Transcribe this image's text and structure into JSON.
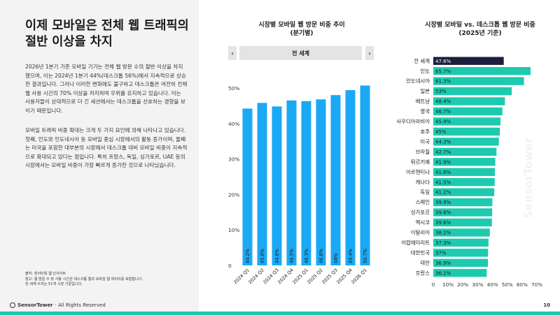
{
  "slide": {
    "title_line1": "이제 모바일은 전체 웹 트래픽의",
    "title_line2": "절반 이상을 차지",
    "para1": "2026년 1분기 기준 모바일 기기는 전체 웹 방문 수의 절반 이상을 차지했으며, 이는 2024년 1분기 44%(데스크톱 56%)에서 지속적으로 상승한 결과입니다. 그러나 이러한 변화에도 불구하고 데스크톱은 여전히 전체 웹 사용 시간의 70% 이상을 차지하며 우위를 유지하고 있습니다. 이는 사용자들이 상대적으로 더 긴 세션에서는 데스크톱을 선호하는 경향을 보이기 때문입니다.",
    "para2": "모바일 트래픽 비중 확대는 크게 두 가지 요인에 의해 나타나고 있습니다. 첫째, 인도와 인도네시아 등 모바일 중심 시장에서의 활동 증가이며, 둘째는 미국을 포함한 대부분의 시장에서 데스크톱 대비 모바일 비중이 지속적으로 확대되고 있다는 점입니다. 특히 프랑스, 독일, 싱가포르, UAE 등의 시장에서는 모바일 비중이 가장 빠르게 증가한 것으로 나타났습니다.",
    "note1": "출처: 센서타워 웹 인사이트",
    "note2": "참고: 웹 방문 수 및 사용 시간은 데스크톱 웹과 모바일 웹 데이터를 포함합니다.",
    "note3": "전 세계 수치는 51개 시장 기준입니다.",
    "footer_brand": "SensorTower",
    "footer_rights": "· All Rights Reserved",
    "page_number": "10",
    "watermark": "SensorTower"
  },
  "selector": {
    "prev_icon": "‹",
    "label": "전 세계",
    "next_icon": "›"
  },
  "colors": {
    "bar_blue": "#1aa9f5",
    "bar_teal": "#1dcaaf",
    "bar_highlight": "#1c1f3d",
    "accent": "#1ec8b0"
  },
  "chart_data": [
    {
      "type": "bar",
      "title": "시장별 모바일 웹 방문 비중 추이",
      "subtitle": "(분기별)",
      "categories": [
        "2024 Q1",
        "2024 Q2",
        "2024 Q3",
        "2024 Q4",
        "2025 Q1",
        "2025 Q2",
        "2025 Q3",
        "2025 Q4",
        "2026 Q1"
      ],
      "values": [
        44.2,
        45.8,
        44.8,
        46.5,
        46.3,
        46.8,
        48.0,
        49.4,
        50.7
      ],
      "data_labels": [
        "44.2%",
        "45.8%",
        "44.8%",
        "46.5%",
        "46.3%",
        "46.8%",
        "48%",
        "49.4%",
        "50.7%"
      ],
      "y_ticks": [
        "0",
        "10%",
        "20%",
        "30%",
        "40%",
        "50%"
      ],
      "ylim": [
        0,
        50
      ],
      "grid": false,
      "color": "#1aa9f5"
    },
    {
      "type": "bar",
      "orientation": "horizontal",
      "title": "시장별 모바일 vs. 데스크톱 웹 방문 비중",
      "subtitle": "(2025년 기준)",
      "categories": [
        "전 세계",
        "인도",
        "인도네시아",
        "일본",
        "베트남",
        "영국",
        "사우디아라비아",
        "호주",
        "미국",
        "브라질",
        "튀르키예",
        "아르헨티나",
        "캐나다",
        "독일",
        "스페인",
        "싱가포르",
        "멕시코",
        "이탈리아",
        "아랍에미리트",
        "대한민국",
        "대만",
        "프랑스"
      ],
      "values": [
        47.6,
        65.7,
        61.3,
        53.0,
        48.4,
        46.7,
        45.4,
        45.0,
        44.3,
        42.7,
        41.9,
        41.6,
        41.5,
        41.2,
        39.9,
        39.8,
        39.6,
        38.2,
        37.3,
        37.0,
        36.9,
        36.1
      ],
      "data_labels": [
        "47.6%",
        "65.7%",
        "61.3%",
        "53%",
        "48.4%",
        "46.7%",
        "45.4%",
        "45%",
        "44.3%",
        "42.7%",
        "41.9%",
        "41.6%",
        "41.5%",
        "41.2%",
        "39.9%",
        "39.8%",
        "39.6%",
        "38.2%",
        "37.3%",
        "37%",
        "36.9%",
        "36.1%"
      ],
      "x_ticks": [
        "0",
        "10%",
        "20%",
        "30%",
        "40%",
        "50%",
        "60%",
        "70%"
      ],
      "xlim": [
        0,
        70
      ],
      "grid": false,
      "highlight": "전 세계",
      "color": "#1dcaaf",
      "highlight_color": "#1c1f3d"
    }
  ]
}
